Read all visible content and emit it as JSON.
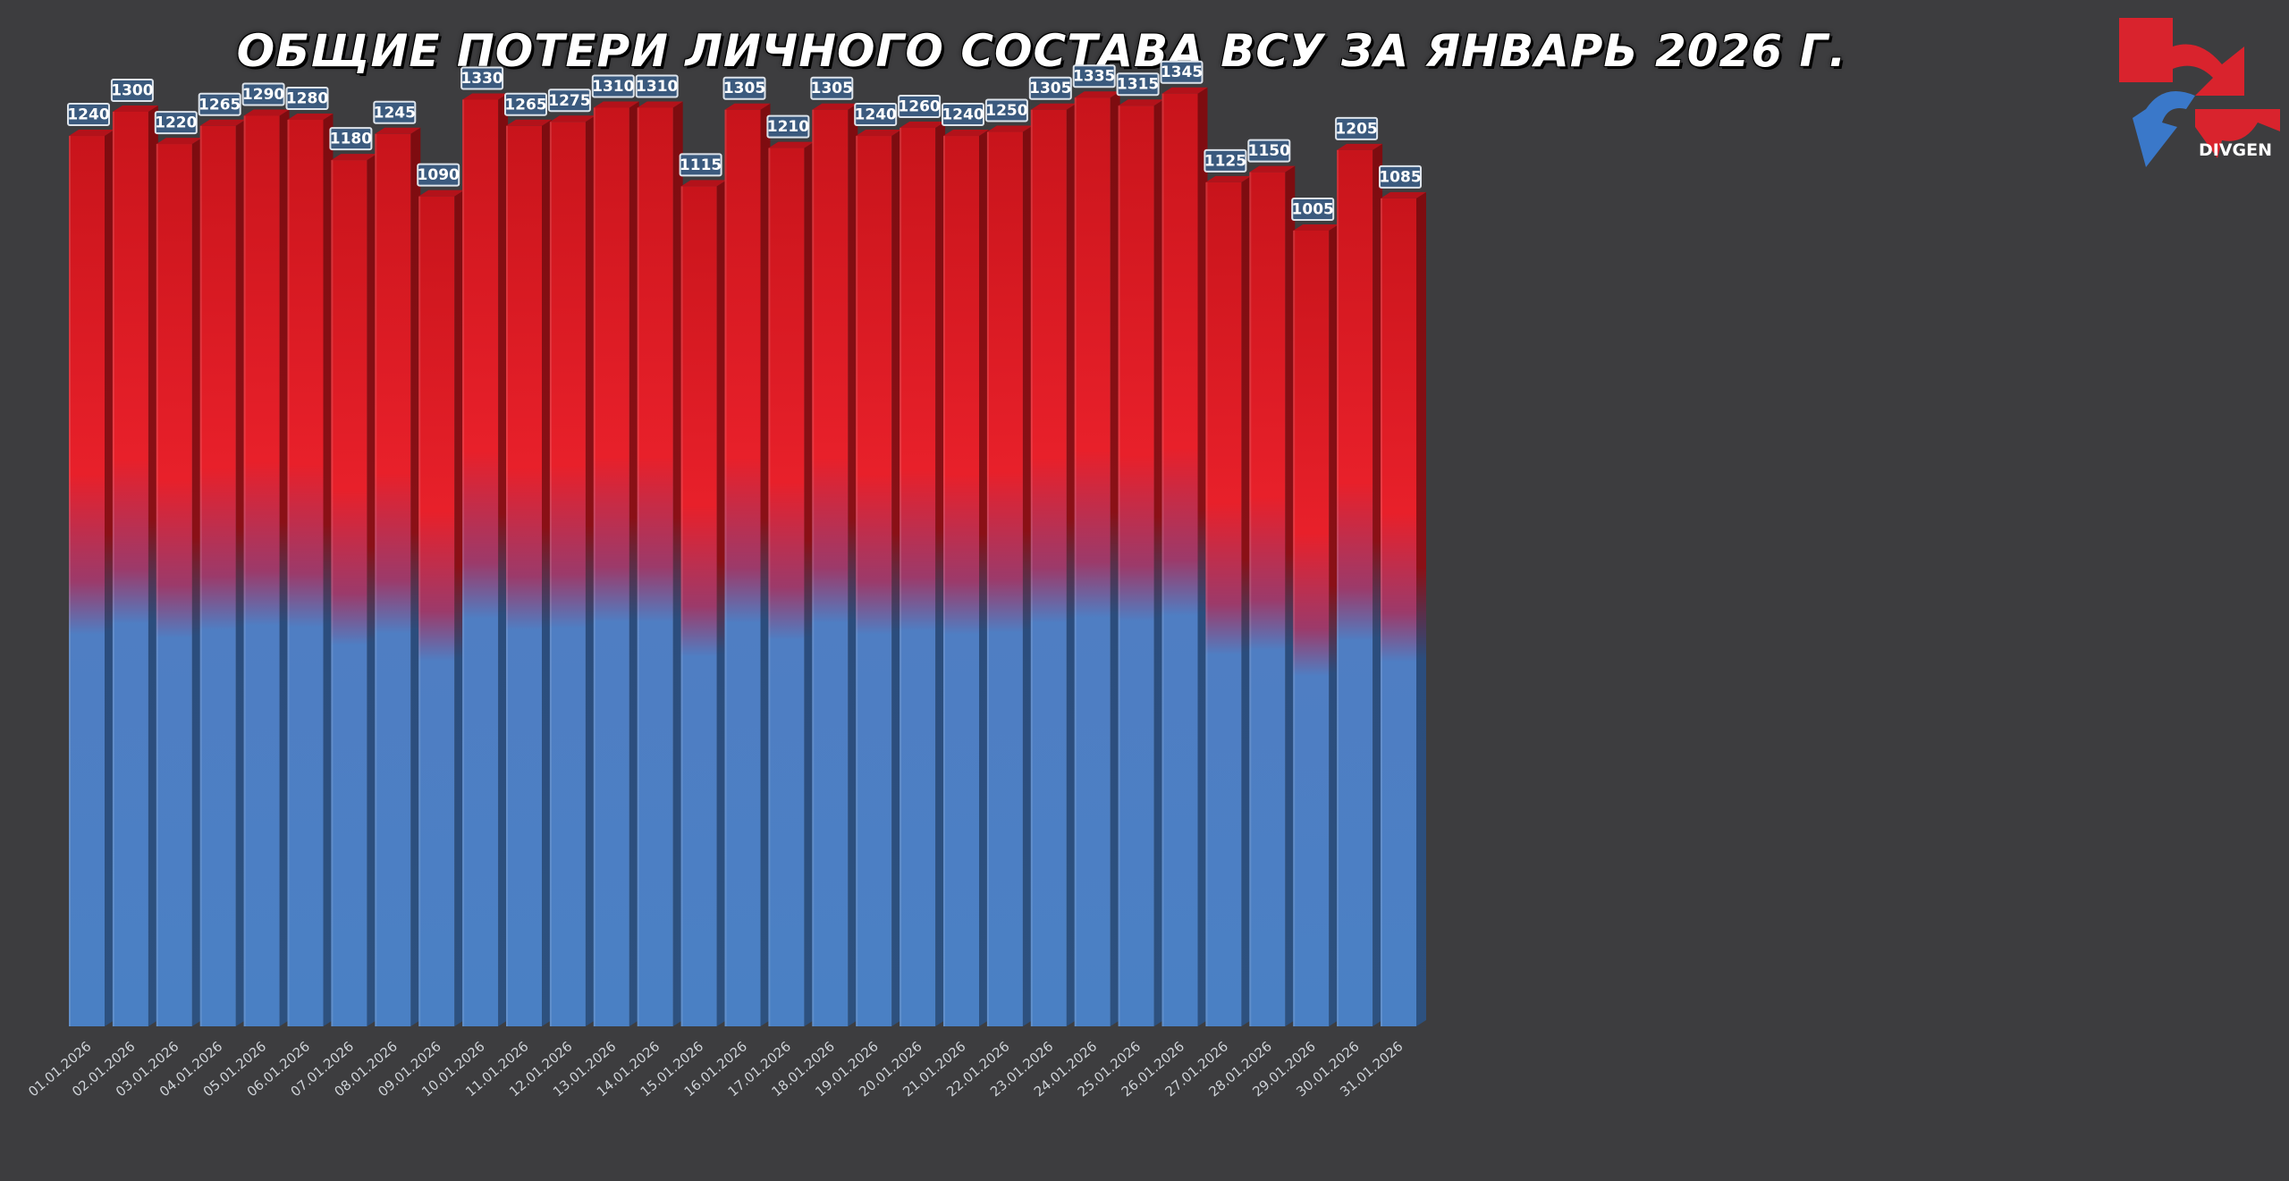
{
  "chart_data": {
    "type": "bar",
    "title": "ОБЩИЕ ПОТЕРИ ЛИЧНОГО СОСТАВА ВСУ ЗА ЯНВАРЬ 2026 Г.",
    "xlabel": "",
    "ylabel": "",
    "ylim": [
      0,
      1400
    ],
    "grid": false,
    "categories": [
      "01.01.2026",
      "02.01.2026",
      "03.01.2026",
      "04.01.2026",
      "05.01.2026",
      "06.01.2026",
      "07.01.2026",
      "08.01.2026",
      "09.01.2026",
      "10.01.2026",
      "11.01.2026",
      "12.01.2026",
      "13.01.2026",
      "14.01.2026",
      "15.01.2026",
      "16.01.2026",
      "17.01.2026",
      "18.01.2026",
      "19.01.2026",
      "20.01.2026",
      "21.01.2026",
      "22.01.2026",
      "23.01.2026",
      "24.01.2026",
      "25.01.2026",
      "26.01.2026",
      "27.01.2026",
      "28.01.2026",
      "29.01.2026",
      "30.01.2026",
      "31.01.2026"
    ],
    "values": [
      1240,
      1300,
      1220,
      1265,
      1290,
      1280,
      1180,
      1245,
      1090,
      1330,
      1265,
      1275,
      1310,
      1310,
      1115,
      1305,
      1210,
      1305,
      1240,
      1260,
      1240,
      1250,
      1305,
      1335,
      1315,
      1345,
      1125,
      1150,
      1005,
      1205,
      1085
    ],
    "colors": {
      "top": "#e01a22",
      "bottom": "#4a80c4",
      "label_bg": "#dde3ea",
      "label_text": "#ffffff"
    }
  },
  "logo": {
    "text": "DIVGEN",
    "colors": [
      "#d9232d",
      "#3a78c9"
    ]
  }
}
